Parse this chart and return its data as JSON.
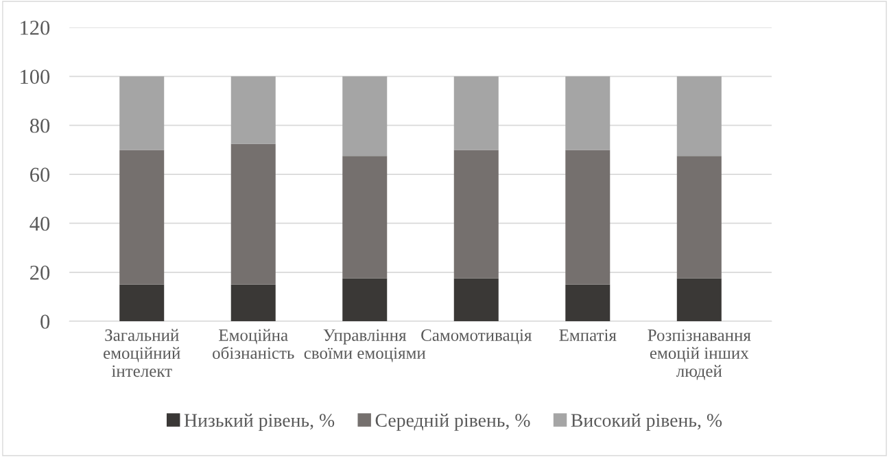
{
  "chart_data": {
    "type": "bar",
    "stacked": true,
    "categories": [
      "Загальний емоційний інтелект",
      "Емоційна обізнаність",
      "Управління своїми емоціями",
      "Самомотивація",
      "Емпатія",
      "Розпізнавання емоцій інших людей"
    ],
    "series": [
      {
        "name": "Низький рівень, %",
        "color": "#3a3836",
        "values": [
          15,
          15,
          17.5,
          17.5,
          15,
          17.5
        ]
      },
      {
        "name": "Середній рівень, %",
        "color": "#75706e",
        "values": [
          55,
          57.5,
          50,
          52.5,
          55,
          50
        ]
      },
      {
        "name": "Високий рівень, %",
        "color": "#a5a5a5",
        "values": [
          30,
          27.5,
          32.5,
          30,
          30,
          32.5
        ]
      }
    ],
    "ylim": [
      0,
      120
    ],
    "yticks": [
      0,
      20,
      40,
      60,
      80,
      100,
      120
    ],
    "grid": "y",
    "legend": "bottom"
  }
}
